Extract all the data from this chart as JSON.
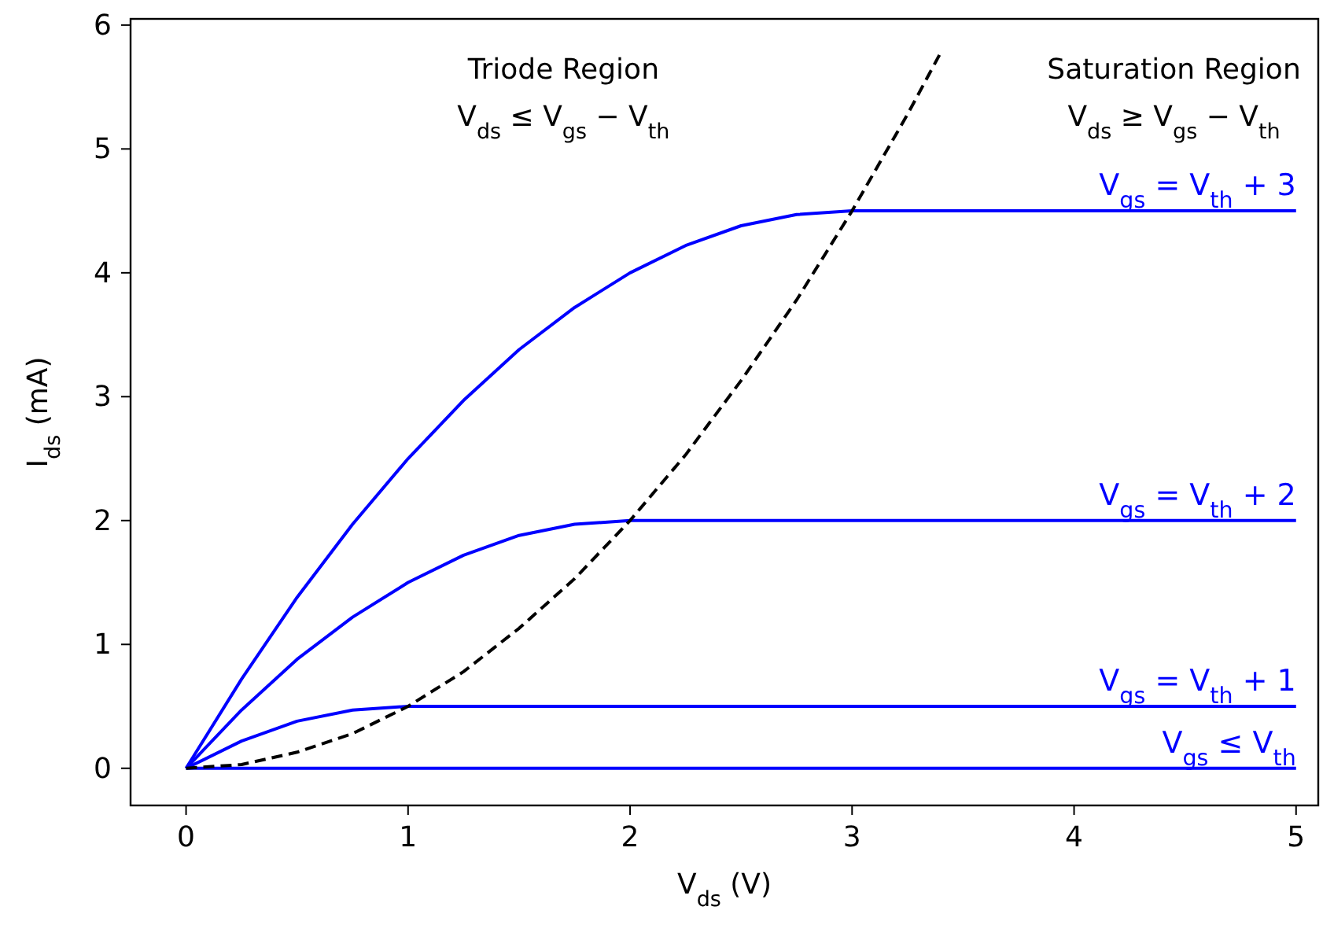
{
  "chart_data": {
    "type": "line",
    "xlabel": "V$_{ds}$ (V)",
    "ylabel": "I$_{ds}$ (mA)",
    "xlim": [
      -0.25,
      5.1
    ],
    "ylim": [
      -0.3,
      6.05
    ],
    "xticks": [
      0,
      1,
      2,
      3,
      4,
      5
    ],
    "yticks": [
      0,
      1,
      2,
      3,
      4,
      5,
      6
    ],
    "grid": false,
    "marker": "none",
    "annotations": [
      "Triode Region",
      "V$_{ds}$ ≤ V$_{gs}$ − V$_{th}$",
      "Saturation Region",
      "V$_{ds}$ ≥ V$_{gs}$ − V$_{th}$"
    ],
    "series": [
      {
        "name": "V$_{gs}$ = V$_{th}$ + 3",
        "color": "#0000ff",
        "line_style": "solid",
        "x": [
          0,
          0.25,
          0.5,
          0.75,
          1,
          1.25,
          1.5,
          1.75,
          2,
          2.25,
          2.5,
          2.75,
          3,
          5
        ],
        "values": [
          0,
          0.72,
          1.38,
          1.97,
          2.5,
          2.97,
          3.38,
          3.72,
          4,
          4.22,
          4.38,
          4.47,
          4.5,
          4.5
        ]
      },
      {
        "name": "V$_{gs}$ = V$_{th}$ + 2",
        "color": "#0000ff",
        "line_style": "solid",
        "x": [
          0,
          0.25,
          0.5,
          0.75,
          1,
          1.25,
          1.5,
          1.75,
          2,
          5
        ],
        "values": [
          0,
          0.47,
          0.88,
          1.22,
          1.5,
          1.72,
          1.88,
          1.97,
          2,
          2
        ]
      },
      {
        "name": "V$_{gs}$ = V$_{th}$ + 1",
        "color": "#0000ff",
        "line_style": "solid",
        "x": [
          0,
          0.25,
          0.5,
          0.75,
          1,
          5
        ],
        "values": [
          0,
          0.22,
          0.38,
          0.47,
          0.5,
          0.5
        ]
      },
      {
        "name": "V$_{gs}$ ≤ V$_{th}$",
        "color": "#0000ff",
        "line_style": "solid",
        "x": [
          0,
          5
        ],
        "values": [
          0,
          0
        ]
      },
      {
        "color": "#000000",
        "line_style": "dashed",
        "x": [
          0,
          0.25,
          0.5,
          0.75,
          1,
          1.25,
          1.5,
          1.75,
          2,
          2.25,
          2.5,
          2.75,
          3,
          3.25,
          3.4
        ],
        "values": [
          0,
          0.03,
          0.13,
          0.28,
          0.5,
          0.78,
          1.13,
          1.53,
          2,
          2.53,
          3.13,
          3.78,
          4.5,
          5.28,
          5.78
        ]
      }
    ]
  }
}
